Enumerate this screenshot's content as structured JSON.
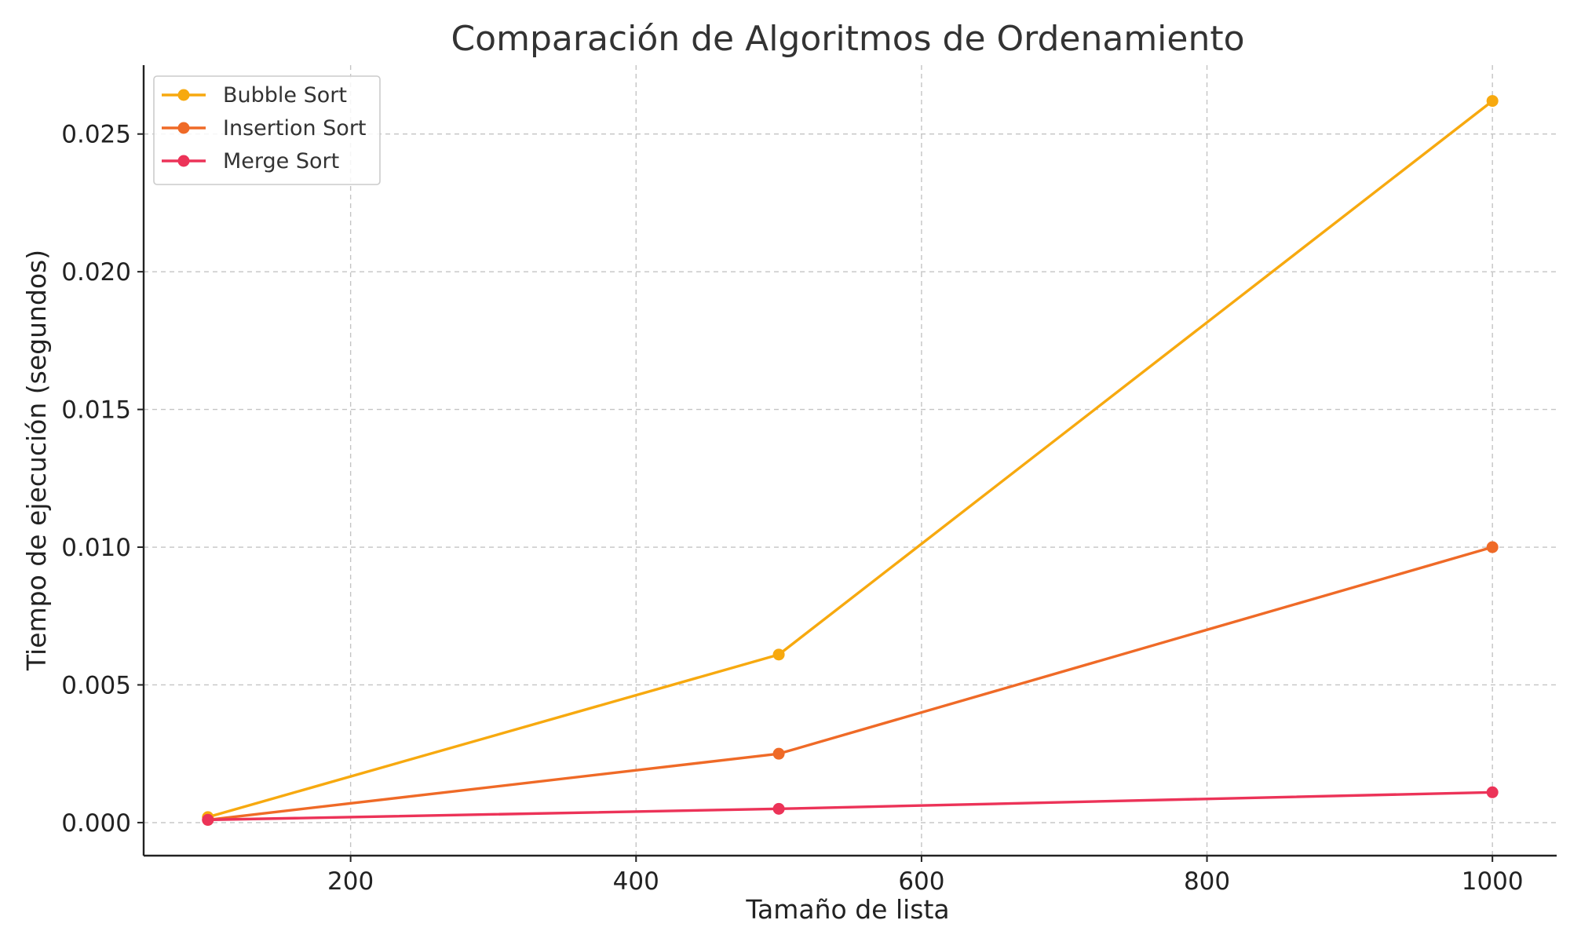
{
  "chart_data": {
    "type": "line",
    "title": "Comparación de Algoritmos de Ordenamiento",
    "xlabel": "Tamaño de lista",
    "ylabel": "Tiempo de ejecución (segundos)",
    "x": [
      100,
      500,
      1000
    ],
    "xlim": [
      55,
      1045
    ],
    "ylim": [
      -0.0012,
      0.0275
    ],
    "xticks": [
      200,
      400,
      600,
      800,
      1000
    ],
    "xtick_labels": [
      "200",
      "400",
      "600",
      "800",
      "1000"
    ],
    "yticks": [
      0,
      0.005,
      0.01,
      0.015,
      0.02,
      0.025
    ],
    "ytick_labels": [
      "0.000",
      "0.005",
      "0.010",
      "0.015",
      "0.020",
      "0.025"
    ],
    "grid": true,
    "legend_position": "top-left",
    "series": [
      {
        "name": "Bubble Sort",
        "color": "#f7a90f",
        "values": [
          0.0002,
          0.0061,
          0.0262
        ]
      },
      {
        "name": "Insertion Sort",
        "color": "#ef6a27",
        "values": [
          0.0001,
          0.0025,
          0.01
        ]
      },
      {
        "name": "Merge Sort",
        "color": "#ec3358",
        "values": [
          0.0001,
          0.0005,
          0.0011
        ]
      }
    ]
  }
}
